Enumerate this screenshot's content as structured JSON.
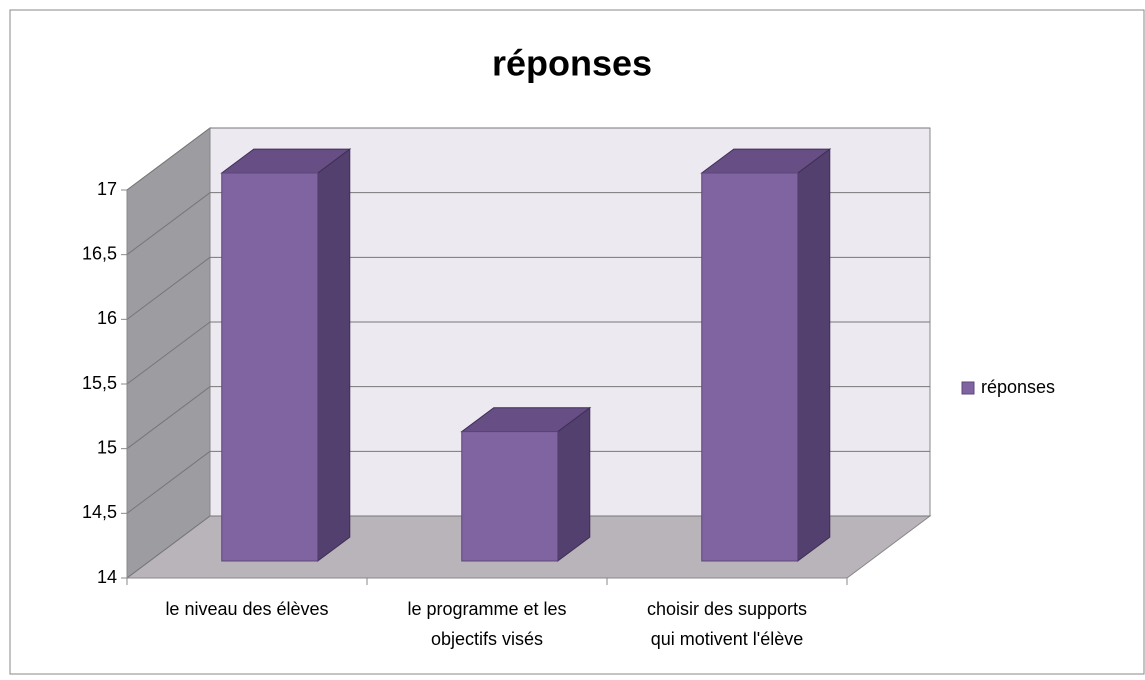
{
  "chart_data": {
    "type": "bar3d",
    "title": "réponses",
    "categories": [
      "le niveau des élèves",
      "le programme et les objectifs visés",
      "choisir des supports qui motivent l'élève"
    ],
    "series": [
      {
        "name": "réponses",
        "color": "#8064a2",
        "values": [
          17,
          15,
          17
        ]
      }
    ],
    "ylim": [
      14,
      17
    ],
    "yticks": [
      14,
      {
        "value": 14.5,
        "label": "14,5"
      },
      15,
      {
        "value": 15.5,
        "label": "15,5"
      },
      16,
      {
        "value": 16.5,
        "label": "16,5"
      },
      17
    ],
    "grid": true,
    "legend": "right"
  }
}
